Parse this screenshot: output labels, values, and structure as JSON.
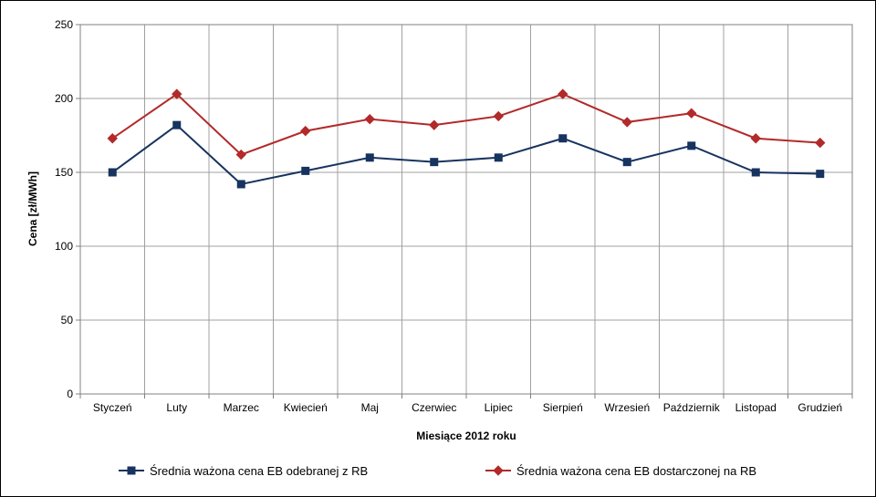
{
  "chart_data": {
    "type": "line",
    "title": "",
    "xlabel": "Miesiące 2012 roku",
    "ylabel": "Cena [zł/MWh]",
    "ylim": [
      0,
      250
    ],
    "yticks": [
      0,
      50,
      100,
      150,
      200,
      250
    ],
    "categories": [
      "Styczeń",
      "Luty",
      "Marzec",
      "Kwiecień",
      "Maj",
      "Czerwiec",
      "Lipiec",
      "Sierpień",
      "Wrzesień",
      "Październik",
      "Listopad",
      "Grudzień"
    ],
    "grid": true,
    "legend_position": "bottom",
    "series": [
      {
        "name": "Średnia ważona cena EB odebranej z RB",
        "color": "#17335f",
        "marker": "square",
        "values": [
          150,
          182,
          142,
          151,
          160,
          157,
          160,
          173,
          157,
          168,
          150,
          149
        ]
      },
      {
        "name": "Średnia ważona cena EB dostarczonej na RB",
        "color": "#b22a2a",
        "marker": "diamond",
        "values": [
          173,
          203,
          162,
          178,
          186,
          182,
          188,
          203,
          184,
          190,
          173,
          170
        ]
      }
    ]
  }
}
